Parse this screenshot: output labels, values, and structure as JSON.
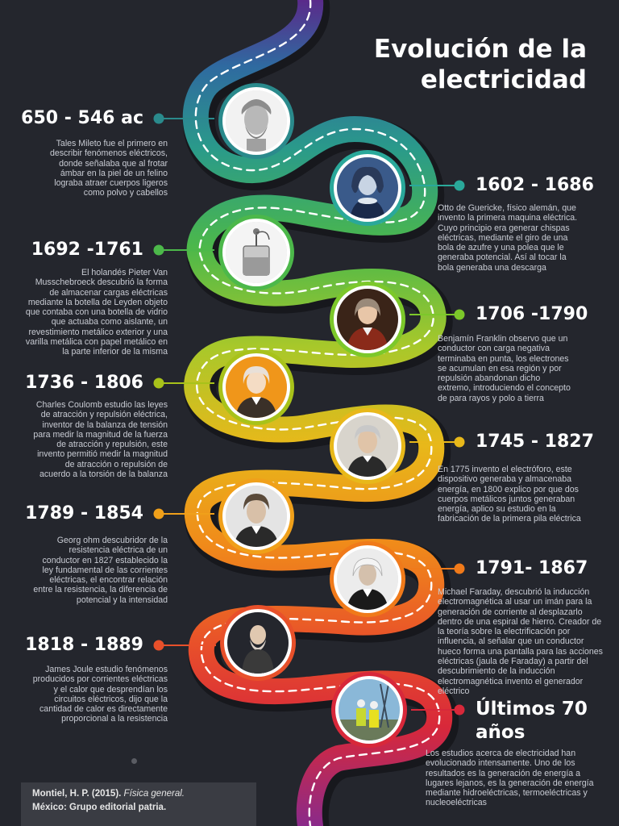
{
  "title": "Evolución de la electricidad",
  "colors": {
    "background": "#24262d",
    "road_gradient": [
      "#5a2a8a",
      "#2f6aa0",
      "#2a9a8a",
      "#4cb84a",
      "#a8c82a",
      "#e8b81a",
      "#f08a1a",
      "#e8502a",
      "#d8283a",
      "#8a2a8a"
    ],
    "dashes": "#ffffff"
  },
  "events": [
    {
      "side": "left",
      "year": "650 - 546 ac",
      "color": "#2a8a8c",
      "portrait_icon": "greek-philosopher-bust-icon",
      "desc": [
        "Tales Mileto fue el primero en",
        "describir fenómenos eléctricos,",
        "donde señalaba que al frotar",
        "ámbar en la piel de un felino",
        "lograba atraer cuerpos ligeros",
        "como polvo y cabellos"
      ]
    },
    {
      "side": "right",
      "year": "1602 - 1686",
      "color": "#2aa89a",
      "portrait_icon": "otto-von-guericke-portrait-icon",
      "desc": [
        "Otto de Guericke, físico alemán, que",
        "invento la primera maquina eléctrica.",
        "Cuyo principio era generar chispas",
        "eléctricas, mediante el giro de una",
        "bola de azufre y una polea que le",
        "generaba potencial. Así al tocar la",
        "bola generaba una descarga"
      ]
    },
    {
      "side": "left",
      "year": "1692 -1761",
      "color": "#4cb84a",
      "portrait_icon": "leyden-jar-icon",
      "desc": [
        "El holandés Pieter Van",
        "Musschebroeck descubrió la forma",
        "de almacenar cargas eléctricas",
        "mediante la botella de Leyden objeto",
        "que contaba con una botella de vidrio",
        "que actuaba como aislante, un",
        "revestimiento metálico exterior y una",
        "varilla metálica con papel metálico en",
        "la parte inferior de la misma"
      ]
    },
    {
      "side": "right",
      "year": "1706 -1790",
      "color": "#7cc82a",
      "portrait_icon": "benjamin-franklin-portrait-icon",
      "desc": [
        "Benjamín Franklin observo que un",
        "conductor con carga negativa",
        "terminaba en punta, los electrones",
        "se acumulan en esa región y por",
        "repulsión abandonan dicho",
        "extremo, introduciendo el concepto",
        "de para rayos y  polo a tierra"
      ]
    },
    {
      "side": "left",
      "year": "1736 - 1806",
      "color": "#a8c21a",
      "portrait_icon": "charles-coulomb-portrait-icon",
      "desc": [
        "Charles Coulomb estudio las leyes",
        "de atracción y repulsión eléctrica,",
        "inventor de la balanza de tensión",
        "para medir la magnitud de la fuerza",
        "de atracción y repulsión, este",
        "invento permitió medir la magnitud",
        "de atracción o repulsión de",
        "acuerdo a la torsión de la balanza"
      ]
    },
    {
      "side": "right",
      "year": "1745 - 1827",
      "color": "#e8b81a",
      "portrait_icon": "alessandro-volta-portrait-icon",
      "desc": [
        "En 1775 invento el electróforo, este",
        "dispositivo generaba y almacenaba",
        "energía, en 1800 explico por que dos",
        "cuerpos metálicos juntos generaban",
        "energía, aplico su estudio en la",
        "fabricación de la primera pila eléctrica"
      ]
    },
    {
      "side": "left",
      "year": "1789 - 1854",
      "color": "#f0a01a",
      "portrait_icon": "georg-ohm-portrait-icon",
      "desc": [
        "Georg ohm descubridor de la",
        "resistencia eléctrica de un",
        "conductor en 1827 establecido la",
        "ley fundamental de las corrientes",
        "eléctricas, el encontrar relación",
        "entre la resistencia, la diferencia de",
        "potencial y la intensidad"
      ]
    },
    {
      "side": "right",
      "year": "1791- 1867",
      "color": "#f07a1a",
      "portrait_icon": "michael-faraday-portrait-icon",
      "desc": [
        "Michael Faraday, descubrió la inducción",
        "electromagnética al usar un imán para la",
        "generación de corriente al desplazarlo",
        "dentro de una espiral de hierro. Creador de",
        "la teoría sobre la electrificación por",
        "influencia, al señalar que un conductor",
        "hueco forma una pantalla para las acciones",
        "eléctricas (jaula de Faraday) a partir del",
        "descubrimiento de la inducción",
        "electromagnética invento el generador",
        "eléctrico"
      ]
    },
    {
      "side": "left",
      "year": "1818 - 1889",
      "color": "#e8502a",
      "portrait_icon": "james-joule-portrait-icon",
      "desc": [
        "James Joule estudio fenómenos",
        "producidos por corrientes eléctricas",
        "y el calor que desprendían los",
        "circuitos eléctricos, dijo que la",
        "cantidad de calor es directamente",
        "proporcional a la resistencia"
      ]
    },
    {
      "side": "right",
      "year": "Últimos 70 años",
      "color": "#d8283a",
      "portrait_icon": "electrical-workers-icon",
      "desc": [
        "Los estudios acerca de electricidad han",
        "evolucionado intensamente. Uno de los",
        "resultados es la generación de energía a",
        "lugares lejanos, es la generación de energía",
        "mediante hidroeléctricas, termoeléctricas y",
        "nucleoeléctricas"
      ]
    }
  ],
  "citation": {
    "author": "Montiel, H. P. (2015). ",
    "book": "Física general.",
    "publisher": "México: Grupo editorial patria."
  }
}
